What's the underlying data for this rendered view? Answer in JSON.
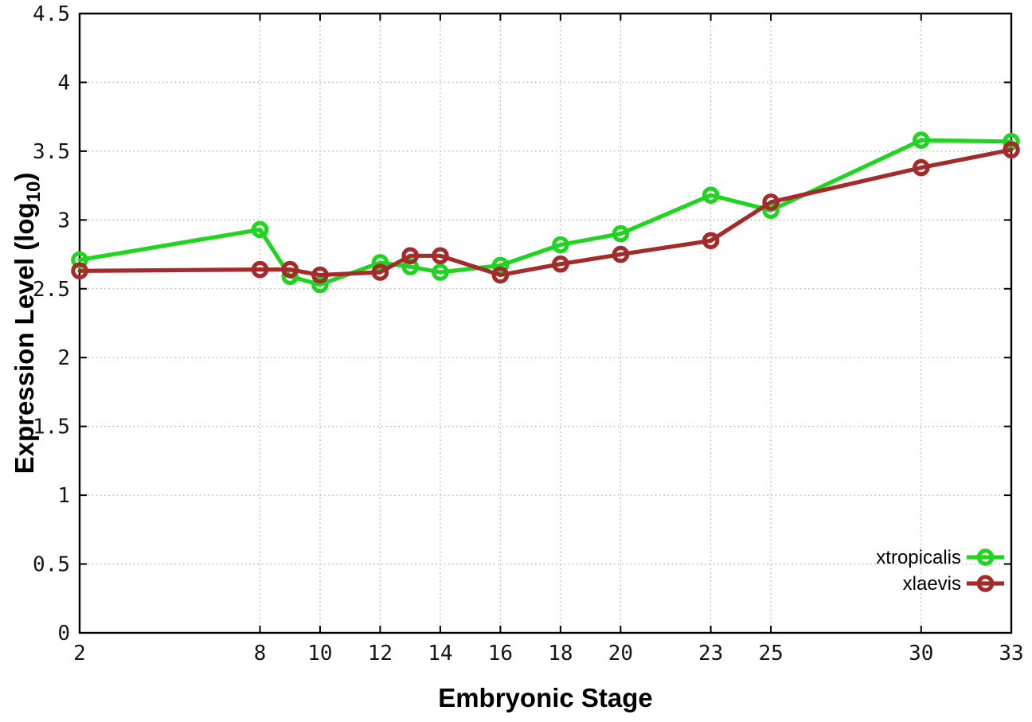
{
  "chart_data": {
    "type": "line",
    "title": "",
    "xlabel": "Embryonic Stage",
    "ylabel": "Expression Level (log10)",
    "ylabel_parts": {
      "main": "Expression Level (log",
      "sub": "10",
      "suffix": ")"
    },
    "xlim": [
      2,
      33
    ],
    "ylim": [
      0,
      4.5
    ],
    "grid": true,
    "legend_position": "bottom-right-inside",
    "xticks": [
      2,
      8,
      10,
      12,
      14,
      16,
      18,
      20,
      23,
      25,
      30,
      33
    ],
    "xtick_labels": [
      "2",
      "8",
      "10",
      "12",
      "14",
      "16",
      "18",
      "20",
      "23",
      "25",
      "30",
      "33"
    ],
    "yticks": [
      0,
      0.5,
      1,
      1.5,
      2,
      2.5,
      3,
      3.5,
      4,
      4.5
    ],
    "ytick_labels": [
      "0",
      "0.5",
      "1",
      "1.5",
      "2",
      "2.5",
      "3",
      "3.5",
      "4",
      "4.5"
    ],
    "x": [
      2,
      8,
      9,
      10,
      12,
      13,
      14,
      16,
      18,
      20,
      23,
      25,
      30,
      33
    ],
    "series": [
      {
        "name": "xtropicalis",
        "color": "#22d422",
        "marker": "open-circle",
        "values": [
          2.71,
          2.93,
          2.59,
          2.53,
          2.69,
          2.66,
          2.62,
          2.67,
          2.82,
          2.9,
          3.18,
          3.07,
          3.58,
          3.57
        ]
      },
      {
        "name": "xlaevis",
        "color": "#a32b2b",
        "marker": "open-circle",
        "values": [
          2.63,
          2.64,
          2.64,
          2.6,
          2.62,
          2.74,
          2.74,
          2.6,
          2.68,
          2.75,
          2.85,
          3.13,
          3.38,
          3.51
        ]
      }
    ],
    "colors": {
      "border": "#000000",
      "grid": "#b3b3b3",
      "tick_text": "#161616"
    }
  }
}
